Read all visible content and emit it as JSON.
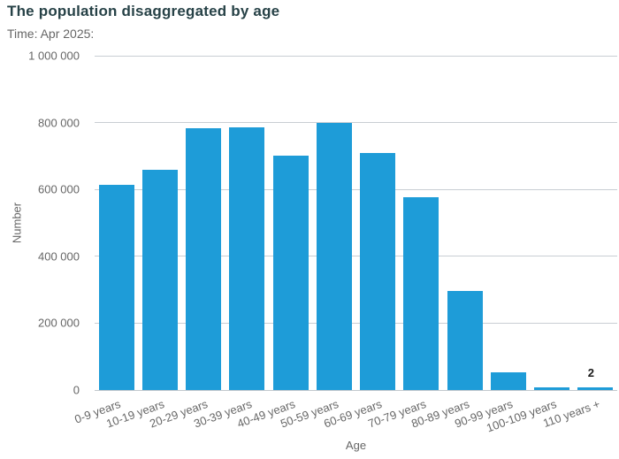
{
  "header": {
    "title": "The population disaggregated by age",
    "subtitle": "Time: Apr 2025:"
  },
  "chart_data": {
    "type": "bar",
    "title": "The population disaggregated by age",
    "subtitle": "Time: Apr 2025:",
    "xlabel": "Age",
    "ylabel": "Number",
    "categories": [
      "0-9 years",
      "10-19 years",
      "20-29 years",
      "30-39 years",
      "40-49 years",
      "50-59 years",
      "60-69 years",
      "70-79 years",
      "80-89 years",
      "90-99 years",
      "100-109 years",
      "110 years +"
    ],
    "values": [
      615000,
      659000,
      782000,
      785000,
      702000,
      798000,
      709000,
      577000,
      297000,
      52000,
      6000,
      2
    ],
    "ylim": [
      0,
      1000000
    ],
    "ytick_interval": 200000,
    "ytick_labels": [
      "0",
      "200 000",
      "400 000",
      "600 000",
      "800 000",
      "1 000 000"
    ],
    "grid": true,
    "legend_position": "none",
    "data_labels": [
      {
        "index": 11,
        "category": "110 years +",
        "text": "2"
      }
    ]
  },
  "colors": {
    "title": "#274247",
    "subtitle": "#666666",
    "axis_text": "#666666",
    "gridline": "#c9ced3",
    "axis_line": "#c2c8cd",
    "bar": "#1e9cd8",
    "data_label": "#1a1a1a"
  }
}
